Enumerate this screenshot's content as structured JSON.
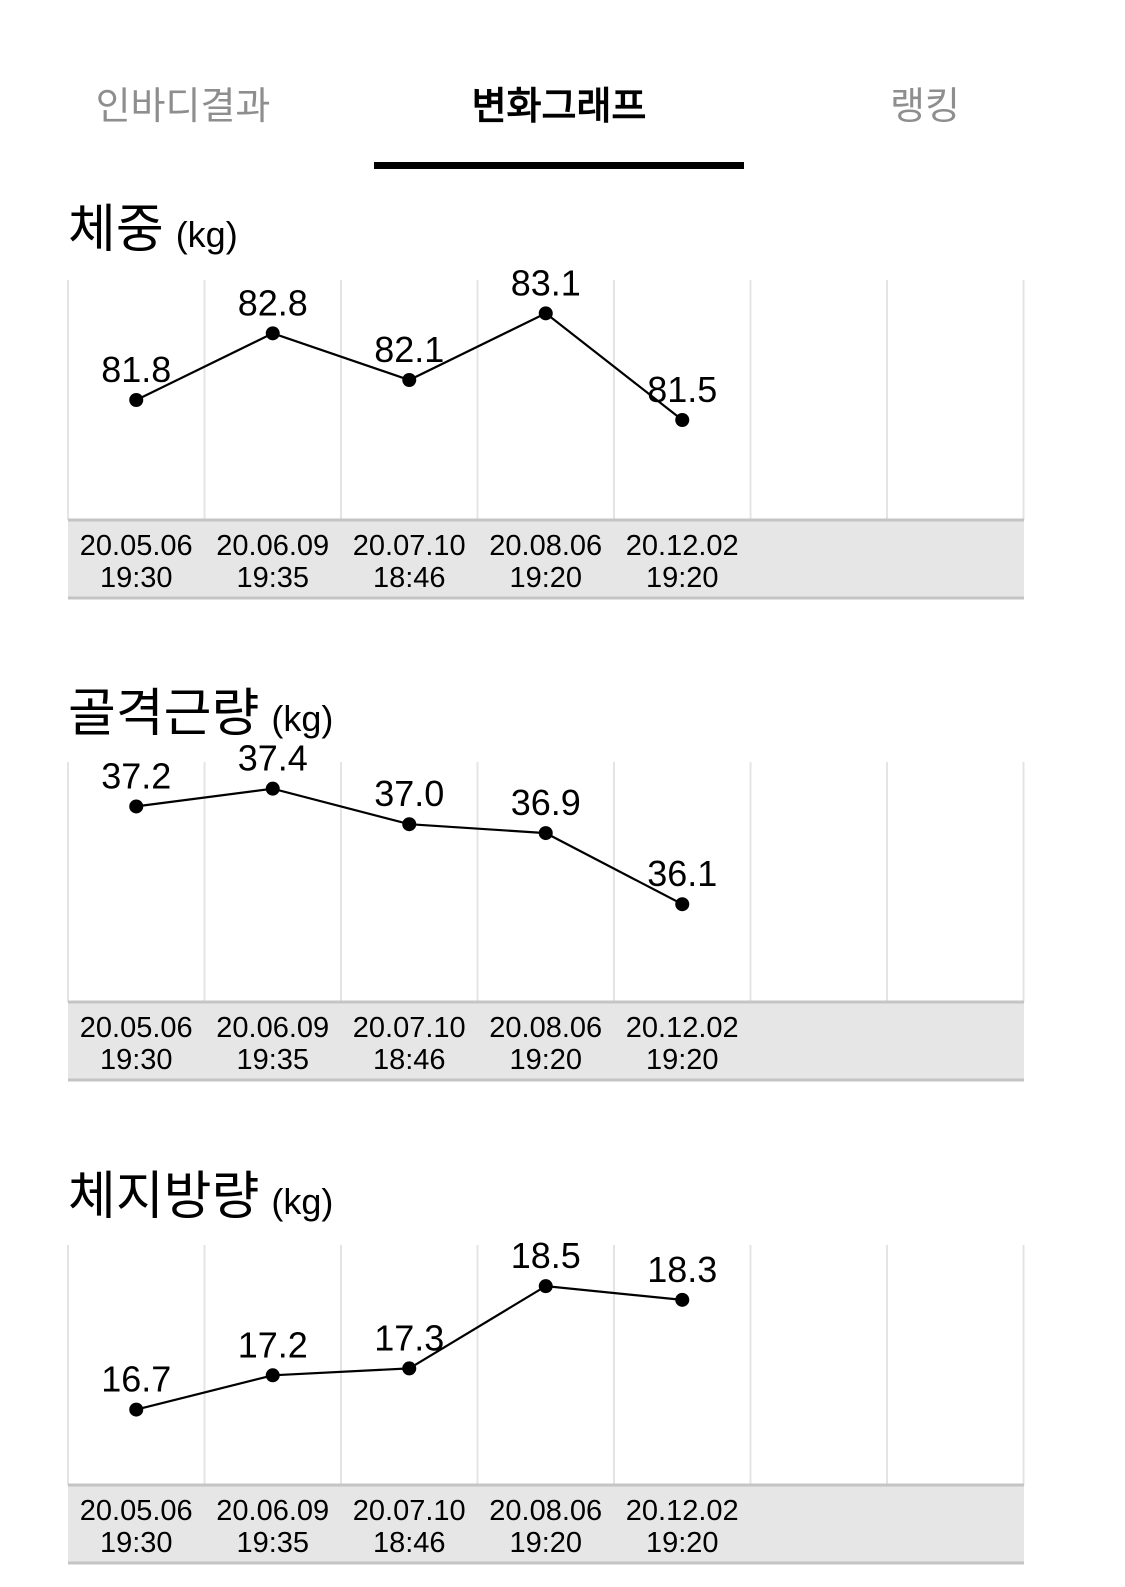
{
  "tabs": [
    {
      "label": "인바디결과",
      "active": false
    },
    {
      "label": "변화그래프",
      "active": true
    },
    {
      "label": "랭킹",
      "active": false
    }
  ],
  "charts": [
    {
      "title": "체중",
      "unit": "(kg)"
    },
    {
      "title": "골격근량",
      "unit": "(kg)"
    },
    {
      "title": "체지방량",
      "unit": "(kg)"
    }
  ],
  "chart_data": [
    {
      "type": "line",
      "title": "체중",
      "unit": "(kg)",
      "x": [
        [
          "20.05.06",
          "19:30"
        ],
        [
          "20.06.09",
          "19:35"
        ],
        [
          "20.07.10",
          "18:46"
        ],
        [
          "20.08.06",
          "19:20"
        ],
        [
          "20.12.02",
          "19:20"
        ]
      ],
      "values": [
        81.8,
        82.8,
        82.1,
        83.1,
        81.5
      ],
      "labels": [
        "81.8",
        "82.8",
        "82.1",
        "83.1",
        "81.5"
      ],
      "ylim": [
        80.0,
        83.6
      ],
      "grid": true
    },
    {
      "type": "line",
      "title": "골격근량",
      "unit": "(kg)",
      "x": [
        [
          "20.05.06",
          "19:30"
        ],
        [
          "20.06.09",
          "19:35"
        ],
        [
          "20.07.10",
          "18:46"
        ],
        [
          "20.08.06",
          "19:20"
        ],
        [
          "20.12.02",
          "19:20"
        ]
      ],
      "values": [
        37.2,
        37.4,
        37.0,
        36.9,
        36.1
      ],
      "labels": [
        "37.2",
        "37.4",
        "37.0",
        "36.9",
        "36.1"
      ],
      "ylim": [
        35.0,
        37.7
      ],
      "grid": true
    },
    {
      "type": "line",
      "title": "체지방량",
      "unit": "(kg)",
      "x": [
        [
          "20.05.06",
          "19:30"
        ],
        [
          "20.06.09",
          "19:35"
        ],
        [
          "20.07.10",
          "18:46"
        ],
        [
          "20.08.06",
          "19:20"
        ],
        [
          "20.12.02",
          "19:20"
        ]
      ],
      "values": [
        16.7,
        17.2,
        17.3,
        18.5,
        18.3
      ],
      "labels": [
        "16.7",
        "17.2",
        "17.3",
        "18.5",
        "18.3"
      ],
      "ylim": [
        15.6,
        19.1
      ],
      "grid": true
    }
  ]
}
